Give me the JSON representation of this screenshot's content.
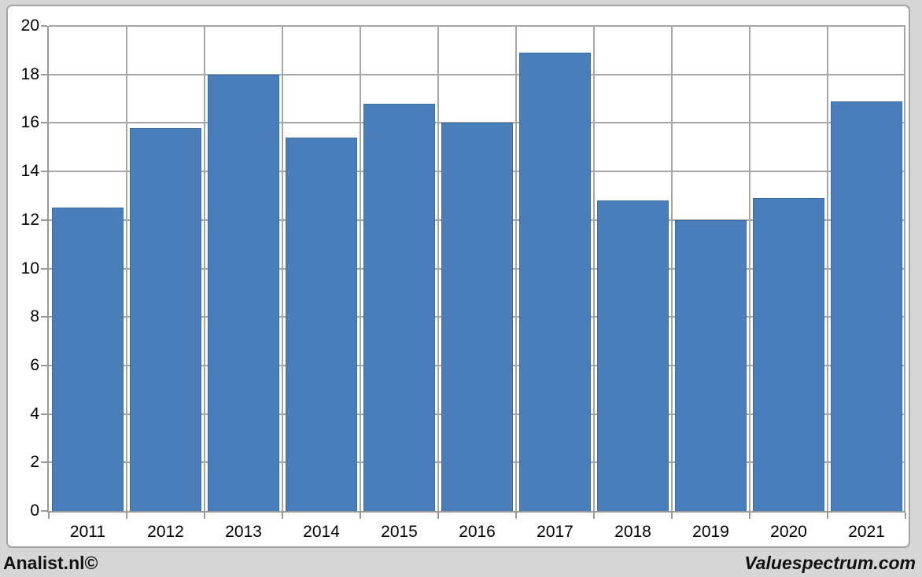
{
  "page": {
    "background_color": "#D6D6D6"
  },
  "chart_frame": {
    "background_color": "#FFFFFF",
    "border_color": "#A3A3A3"
  },
  "chart_data": {
    "type": "bar",
    "title": "",
    "categories": [
      "2011",
      "2012",
      "2013",
      "2014",
      "2015",
      "2016",
      "2017",
      "2018",
      "2019",
      "2020",
      "2021"
    ],
    "values": [
      12.5,
      15.8,
      18.0,
      15.4,
      16.8,
      16.0,
      18.9,
      12.8,
      12.0,
      12.9,
      16.9
    ],
    "xlabel": "",
    "ylabel": "",
    "ylim": [
      0,
      20
    ],
    "yticks": [
      0,
      2,
      4,
      6,
      8,
      10,
      12,
      14,
      16,
      18,
      20
    ],
    "grid": {
      "horizontal": true,
      "vertical": true
    },
    "legend": "none",
    "bar_color": "#4A7EBB",
    "bar_border_color": "#3D6DA6",
    "gridline_color": "#A6A6A6",
    "axis_color": "#999999",
    "tick_label_color": "#000000"
  },
  "footer": {
    "left_brand": "Analist.nl©",
    "right_brand": "Valuespectrum.com"
  }
}
